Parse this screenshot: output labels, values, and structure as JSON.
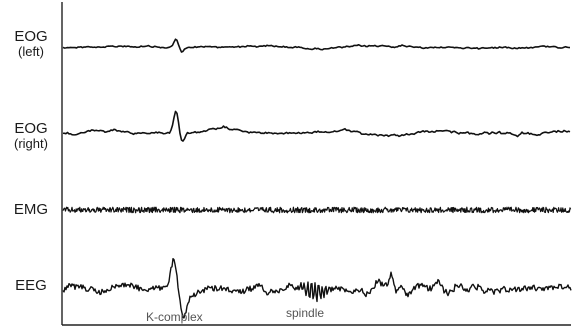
{
  "channels": [
    {
      "id": "eog-left",
      "name": "EOG",
      "sub": "(left)"
    },
    {
      "id": "eog-right",
      "name": "EOG",
      "sub": "(right)"
    },
    {
      "id": "emg",
      "name": "EMG",
      "sub": ""
    },
    {
      "id": "eeg",
      "name": "EEG",
      "sub": ""
    }
  ],
  "annotations": {
    "k_complex": "K-complex",
    "spindle": "spindle"
  },
  "colors": {
    "trace": "#111111",
    "frame": "#222222",
    "annotation": "#555555"
  }
}
